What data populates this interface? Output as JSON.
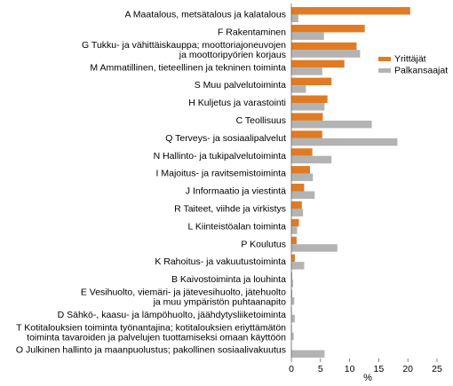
{
  "chart_data": {
    "type": "bar",
    "orientation": "horizontal",
    "categories": [
      [
        "A Maatalous, metsätalous ja kalatalous"
      ],
      [
        "F Rakentaminen"
      ],
      [
        "G Tukku- ja vähittäiskauppa;  moottoriajoneuvojen",
        "ja moottoripyörien korjaus"
      ],
      [
        "M Ammatillinen, tieteellinen ja tekninen toiminta"
      ],
      [
        "S Muu palvelutoiminta"
      ],
      [
        "H Kuljetus ja varastointi"
      ],
      [
        "C Teollisuus"
      ],
      [
        "Q Terveys- ja sosiaalipalvelut"
      ],
      [
        "N Hallinto- ja tukipalvelutoiminta"
      ],
      [
        "I Majoitus- ja ravitsemistoiminta"
      ],
      [
        "J Informaatio ja viestintä"
      ],
      [
        "R Taiteet, viihde ja virkistys"
      ],
      [
        "L Kiinteistöalan toiminta"
      ],
      [
        "P Koulutus"
      ],
      [
        "K Rahoitus- ja vakuutustoiminta"
      ],
      [
        "B Kaivostoiminta ja louhinta"
      ],
      [
        "E Vesihuolto, viemäri- ja jätevesihuolto, jätehuolto",
        "ja muu ympäristön puhtaanapito"
      ],
      [
        "D Sähkö-, kaasu- ja lämpöhuolto, jäähdytysliiketoiminta"
      ],
      [
        "T Kotitalouksien toiminta työnantajina; kotitalouksien eriyttämätön",
        "toiminta tavaroiden  ja palvelujen tuottamiseksi omaan käyttöön"
      ],
      [
        "O Julkinen hallinto ja maanpuolustus; pakollinen sosiaalivakuutus"
      ]
    ],
    "series": [
      {
        "name": "Yrittäjät",
        "color": "#e07b24",
        "values": [
          20.4,
          12.6,
          11.2,
          9.1,
          6.9,
          6.2,
          5.4,
          5.3,
          3.6,
          3.2,
          2.2,
          1.8,
          1.3,
          0.9,
          0.6,
          0.15,
          0.15,
          0.1,
          0.1,
          0.05
        ]
      },
      {
        "name": "Palkansaajat",
        "color": "#b3b3b3",
        "values": [
          1.2,
          5.6,
          11.8,
          5.3,
          2.5,
          5.7,
          13.8,
          18.2,
          6.9,
          3.7,
          4.0,
          2.0,
          1.0,
          7.9,
          2.2,
          0.3,
          0.5,
          0.6,
          0.4,
          5.7
        ]
      }
    ],
    "xlabel": "%",
    "xlim": [
      0,
      25
    ],
    "xticks": [
      "0",
      "5",
      "10",
      "15",
      "20",
      "25"
    ],
    "grid": false,
    "legend_position": "right"
  }
}
